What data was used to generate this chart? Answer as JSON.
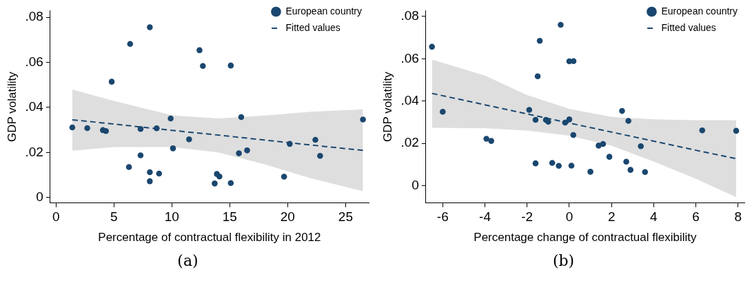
{
  "chart_data": [
    {
      "type": "scatter",
      "xlabel": "Percentage of contractual flexibility in 2012",
      "ylabel": "GDP volatility",
      "annotations": [
        "(a)"
      ],
      "legend": "top right",
      "grid": false,
      "marker": "circle",
      "xlim": [
        -0.5,
        27
      ],
      "xticks": [
        0,
        5,
        10,
        15,
        20,
        25
      ],
      "ylim": [
        -0.0025,
        0.083
      ],
      "yticks": [
        {
          "value": 0,
          "label": "0"
        },
        {
          "value": 0.02,
          "label": ".02"
        },
        {
          "value": 0.04,
          "label": ".04"
        },
        {
          "value": 0.06,
          "label": ".06"
        },
        {
          "value": 0.08,
          "label": ".08"
        }
      ],
      "series": [
        {
          "name": "European country",
          "type": "scatter",
          "color": "#1a476f",
          "x": [
            1.41,
            2.7,
            4.05,
            4.31,
            4.81,
            6.4,
            6.3,
            7.3,
            7.3,
            8.1,
            8.1,
            8.1,
            8.69,
            8.9,
            9.9,
            10.1,
            11.49,
            12.39,
            12.68,
            13.7,
            13.89,
            14.11,
            15.09,
            15.09,
            15.79,
            15.99,
            16.5,
            19.69,
            20.18,
            22.39,
            22.8,
            26.5
          ],
          "values": [
            0.0311,
            0.0308,
            0.0299,
            0.0295,
            0.0514,
            0.0682,
            0.0135,
            0.0304,
            0.0187,
            0.0756,
            0.0112,
            0.0072,
            0.0307,
            0.0106,
            0.0351,
            0.0218,
            0.0258,
            0.0654,
            0.0584,
            0.0062,
            0.0104,
            0.0093,
            0.0586,
            0.0064,
            0.0196,
            0.0357,
            0.0209,
            0.0092,
            0.0238,
            0.0256,
            0.0185,
            0.0346
          ]
        },
        {
          "name": "Fitted values",
          "type": "line",
          "color": "#1a476f",
          "line_style": "dashed",
          "marker": "none",
          "x": [
            1.41,
            5,
            10,
            14,
            18,
            22,
            26.5
          ],
          "values": [
            0.0345,
            0.0326,
            0.0298,
            0.0277,
            0.0255,
            0.0233,
            0.0209
          ],
          "lower": [
            0.0208,
            0.0224,
            0.0224,
            0.02,
            0.0147,
            0.0085,
            0.0028
          ],
          "upper": [
            0.0479,
            0.0429,
            0.0365,
            0.0351,
            0.0364,
            0.0381,
            0.0391
          ]
        }
      ]
    },
    {
      "type": "scatter",
      "xlabel": "Percentage change of contractual flexibility",
      "ylabel": "GDP volatility",
      "annotations": [
        "(b)"
      ],
      "legend": "top right",
      "grid": false,
      "marker": "circle",
      "xlim": [
        -6.8,
        8.3
      ],
      "xticks": [
        -6,
        -4,
        -2,
        0,
        2,
        4,
        6,
        8
      ],
      "ylim": [
        -0.0083,
        0.0828
      ],
      "yticks": [
        {
          "value": 0,
          "label": "0"
        },
        {
          "value": 0.02,
          "label": ".02"
        },
        {
          "value": 0.04,
          "label": ".04"
        },
        {
          "value": 0.06,
          "label": ".06"
        },
        {
          "value": 0.08,
          "label": ".08"
        }
      ],
      "series": [
        {
          "name": "European country",
          "type": "scatter",
          "color": "#1a476f",
          "x": [
            -6.51,
            -6,
            -3.93,
            -3.7,
            -1.9,
            -1.6,
            -1.6,
            -1.5,
            -1.4,
            -1.11,
            -1,
            -0.81,
            -0.5,
            -0.41,
            -0.2,
            0,
            0,
            0.1,
            0.2,
            0.19,
            1,
            1.39,
            1.6,
            1.9,
            2.5,
            2.7,
            2.8,
            2.9,
            3.39,
            3.59,
            6.3,
            7.91
          ],
          "values": [
            0.0657,
            0.0349,
            0.0221,
            0.0211,
            0.0358,
            0.0311,
            0.0105,
            0.0517,
            0.0685,
            0.0311,
            0.0302,
            0.0107,
            0.0093,
            0.0761,
            0.0298,
            0.0313,
            0.0588,
            0.0094,
            0.0589,
            0.0239,
            0.0065,
            0.0189,
            0.0197,
            0.0136,
            0.0353,
            0.0113,
            0.0306,
            0.0074,
            0.0186,
            0.0064,
            0.0261,
            0.0259
          ]
        },
        {
          "name": "Fitted values",
          "type": "line",
          "color": "#1a476f",
          "line_style": "dashed",
          "marker": "none",
          "x": [
            -6.51,
            -4,
            -2,
            0,
            2,
            4,
            6,
            7.91
          ],
          "values": [
            0.0436,
            0.0382,
            0.0339,
            0.0296,
            0.0253,
            0.021,
            0.0167,
            0.0127
          ],
          "lower": [
            0.0273,
            0.0271,
            0.026,
            0.0236,
            0.0189,
            0.0114,
            0.0032,
            -0.0055
          ],
          "upper": [
            0.0596,
            0.052,
            0.0428,
            0.0363,
            0.0325,
            0.0313,
            0.0309,
            0.0309
          ]
        }
      ]
    }
  ]
}
